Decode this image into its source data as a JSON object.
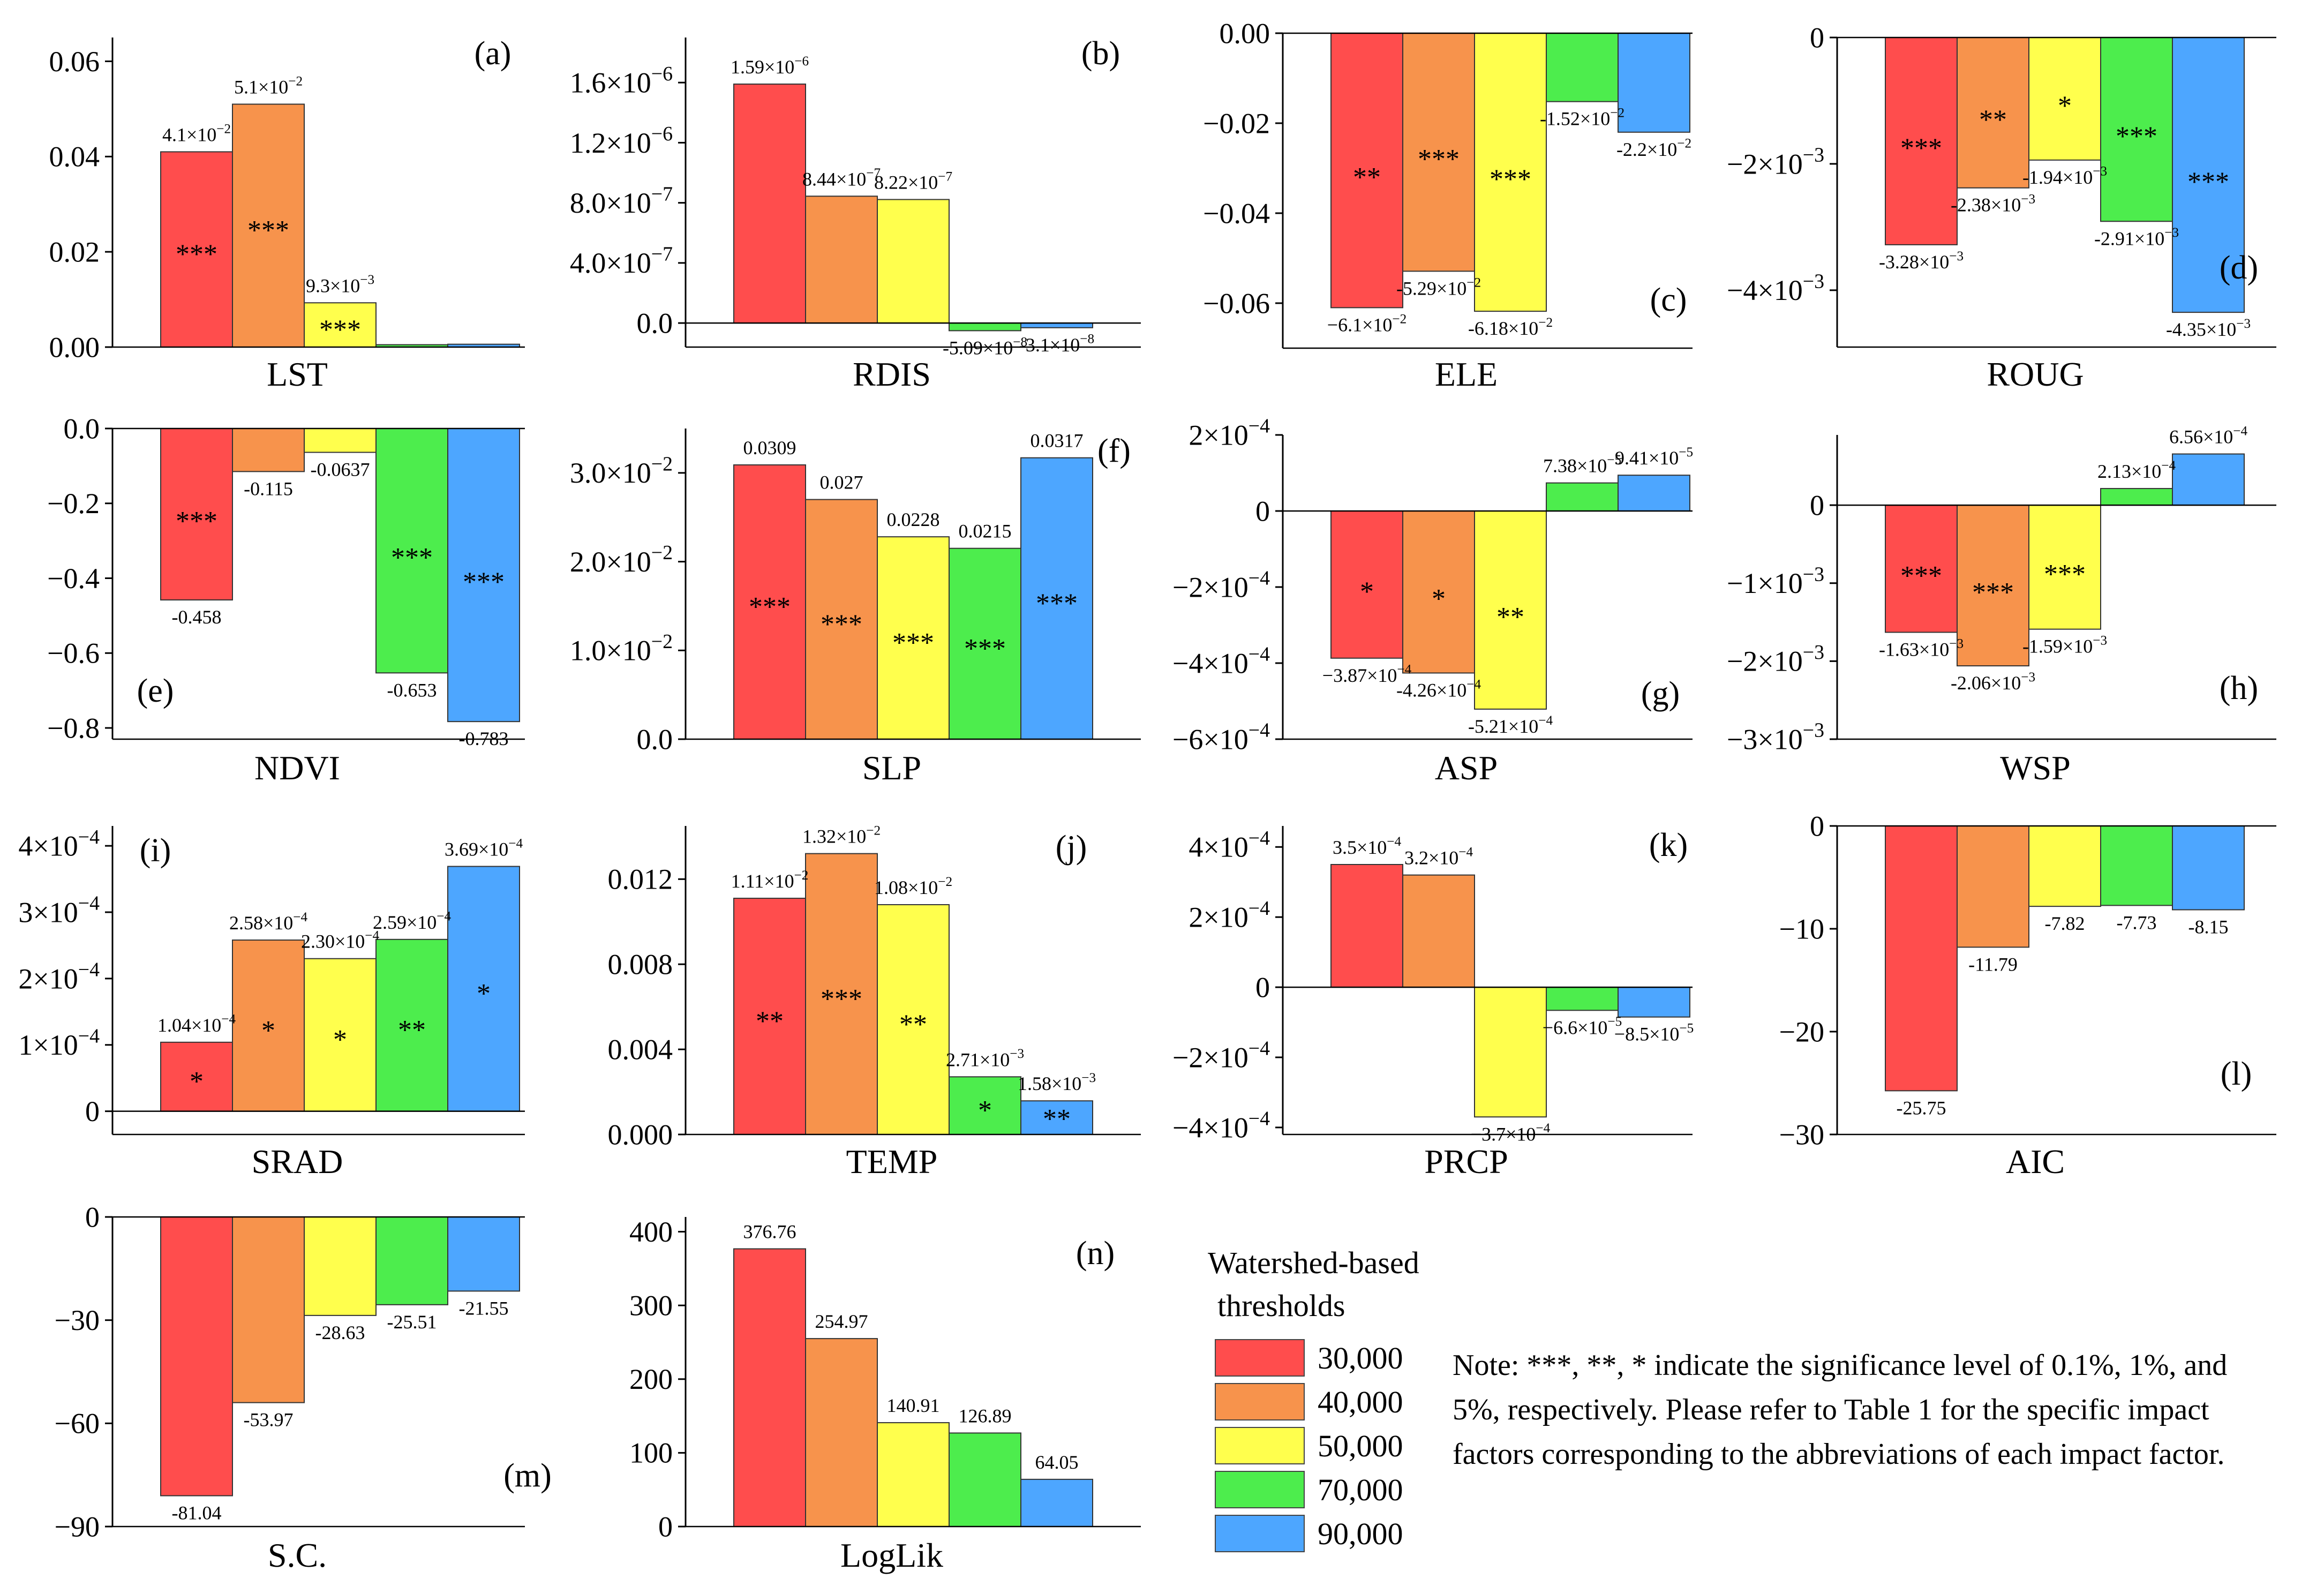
{
  "legend": {
    "title_line1": "Watershed-based",
    "title_line2": "thresholds",
    "entries": [
      {
        "label": "30,000",
        "color": "#ff4d4d"
      },
      {
        "label": "40,000",
        "color": "#f7934c"
      },
      {
        "label": "50,000",
        "color": "#ffff4d"
      },
      {
        "label": "70,000",
        "color": "#4ded4d"
      },
      {
        "label": "90,000",
        "color": "#4da6ff"
      }
    ]
  },
  "note": "Note: ***, **, * indicate the significance level of 0.1%, 1%, and 5%, respectively. Please refer to Table 1 for the specific impact factors corresponding to the abbreviations of each impact factor.",
  "chart_data": [
    {
      "type": "bar",
      "panel": "(a)",
      "xlabel": "LST",
      "ylim": [
        0,
        0.065
      ],
      "ticks": [
        0,
        0.02,
        0.04,
        0.06
      ],
      "tick_labels": [
        "0.00",
        "0.02",
        "0.04",
        "0.06"
      ],
      "categories": [
        "30,000",
        "40,000",
        "50,000",
        "70,000",
        "90,000"
      ],
      "values": [
        0.041,
        0.051,
        0.0093,
        0.0005,
        0.0006
      ],
      "value_labels": [
        "4.1×10^-2",
        "5.1×10^-2",
        "9.3×10^-3",
        "",
        ""
      ],
      "significance": [
        "***",
        "***",
        "***",
        "",
        ""
      ]
    },
    {
      "type": "bar",
      "panel": "(b)",
      "xlabel": "RDIS",
      "ylim": [
        -1.6e-07,
        1.9e-06
      ],
      "ticks": [
        0,
        4e-07,
        8e-07,
        1.2e-06,
        1.6e-06
      ],
      "tick_labels": [
        "0.0",
        "4.0×10^-7",
        "8.0×10^-7",
        "1.2×10^-6",
        "1.6×10^-6"
      ],
      "categories": [
        "30,000",
        "40,000",
        "50,000",
        "70,000",
        "90,000"
      ],
      "values": [
        1.59e-06,
        8.44e-07,
        8.22e-07,
        -5.09e-08,
        -3.1e-08
      ],
      "value_labels": [
        "1.59×10^-6",
        "8.44×10^-7",
        "8.22×10^-7",
        "-5.09×10^-8",
        "-3.1×10^-8"
      ],
      "significance": [
        "",
        "",
        "",
        "",
        ""
      ]
    },
    {
      "type": "bar",
      "panel": "(c)",
      "xlabel": "ELE",
      "ylim": [
        -0.07,
        0
      ],
      "ticks": [
        0,
        -0.02,
        -0.04,
        -0.06
      ],
      "tick_labels": [
        "0.00",
        "−0.02",
        "−0.04",
        "−0.06"
      ],
      "categories": [
        "30,000",
        "40,000",
        "50,000",
        "70,000",
        "90,000"
      ],
      "values": [
        -0.061,
        -0.0529,
        -0.0618,
        -0.0152,
        -0.022
      ],
      "value_labels": [
        "−6.1×10^-2",
        "-5.29×10^-2",
        "-6.18×10^-2",
        "-1.52×10^-2",
        "-2.2×10^-2"
      ],
      "significance": [
        "**",
        "***",
        "***",
        "",
        ""
      ]
    },
    {
      "type": "bar",
      "panel": "(d)",
      "xlabel": "ROUG",
      "ylim": [
        -0.0049,
        0
      ],
      "ticks": [
        0,
        -0.002,
        -0.004
      ],
      "tick_labels": [
        "0",
        "−2×10^-3",
        "−4×10^-3"
      ],
      "categories": [
        "30,000",
        "40,000",
        "50,000",
        "70,000",
        "90,000"
      ],
      "values": [
        -0.00328,
        -0.00238,
        -0.00194,
        -0.00291,
        -0.00435
      ],
      "value_labels": [
        "-3.28×10^-3",
        "-2.38×10^-3",
        "-1.94×10^-3",
        "-2.91×10^-3",
        "-4.35×10^-3"
      ],
      "significance": [
        "***",
        "**",
        "*",
        "***",
        "***"
      ]
    },
    {
      "type": "bar",
      "panel": "(e)",
      "xlabel": "NDVI",
      "ylim": [
        -0.83,
        0
      ],
      "ticks": [
        0,
        -0.2,
        -0.4,
        -0.6,
        -0.8
      ],
      "tick_labels": [
        "0.0",
        "−0.2",
        "−0.4",
        "−0.6",
        "−0.8"
      ],
      "categories": [
        "30,000",
        "40,000",
        "50,000",
        "70,000",
        "90,000"
      ],
      "values": [
        -0.458,
        -0.115,
        -0.0637,
        -0.653,
        -0.783
      ],
      "value_labels": [
        "-0.458",
        "-0.115",
        "-0.0637",
        "-0.653",
        "-0.783"
      ],
      "significance": [
        "***",
        "",
        "",
        "***",
        "***"
      ]
    },
    {
      "type": "bar",
      "panel": "(f)",
      "xlabel": "SLP",
      "ylim": [
        0,
        0.035
      ],
      "ticks": [
        0,
        0.01,
        0.02,
        0.03
      ],
      "tick_labels": [
        "0.0",
        "1.0×10^-2",
        "2.0×10^-2",
        "3.0×10^-2"
      ],
      "categories": [
        "30,000",
        "40,000",
        "50,000",
        "70,000",
        "90,000"
      ],
      "values": [
        0.0309,
        0.027,
        0.0228,
        0.0215,
        0.0317
      ],
      "value_labels": [
        "0.0309",
        "0.027",
        "0.0228",
        "0.0215",
        "0.0317"
      ],
      "significance": [
        "***",
        "***",
        "***",
        "***",
        "***"
      ]
    },
    {
      "type": "bar",
      "panel": "(g)",
      "xlabel": "ASP",
      "ylim": [
        -0.0006,
        0.0002
      ],
      "ticks": [
        0.0002,
        0,
        -0.0002,
        -0.0004,
        -0.0006
      ],
      "tick_labels": [
        "2×10^-4",
        "0",
        "−2×10^-4",
        "−4×10^-4",
        "−6×10^-4"
      ],
      "categories": [
        "30,000",
        "40,000",
        "50,000",
        "70,000",
        "90,000"
      ],
      "values": [
        -0.000387,
        -0.000426,
        -0.000521,
        7.38e-05,
        9.41e-05
      ],
      "value_labels": [
        "−3.87×10^-4",
        "-4.26×10^-4",
        "-5.21×10^-4",
        "7.38×10^-5",
        "9.41×10^-5"
      ],
      "significance": [
        "*",
        "*",
        "**",
        "",
        ""
      ]
    },
    {
      "type": "bar",
      "panel": "(h)",
      "xlabel": "WSP",
      "ylim": [
        -0.003,
        0.0009
      ],
      "ticks": [
        0,
        -0.001,
        -0.002,
        -0.003
      ],
      "tick_labels": [
        "0",
        "−1×10^-3",
        "−2×10^-3",
        "−3×10^-3"
      ],
      "categories": [
        "30,000",
        "40,000",
        "50,000",
        "70,000",
        "90,000"
      ],
      "values": [
        -0.00163,
        -0.00206,
        -0.00159,
        0.000213,
        0.000656
      ],
      "value_labels": [
        "-1.63×10^-3",
        "-2.06×10^-3",
        "-1.59×10^-3",
        "2.13×10^-4",
        "6.56×10^-4"
      ],
      "significance": [
        "***",
        "***",
        "***",
        "",
        ""
      ]
    },
    {
      "type": "bar",
      "panel": "(i)",
      "xlabel": "SRAD",
      "ylim": [
        -3.5e-05,
        0.00043
      ],
      "ticks": [
        0,
        0.0001,
        0.0002,
        0.0003,
        0.0004
      ],
      "tick_labels": [
        "0",
        "1×10^-4",
        "2×10^-4",
        "3×10^-4",
        "4×10^-4"
      ],
      "categories": [
        "30,000",
        "40,000",
        "50,000",
        "70,000",
        "90,000"
      ],
      "values": [
        0.000104,
        0.000258,
        0.00023,
        0.000259,
        0.000369
      ],
      "value_labels": [
        "1.04×10^-4",
        "2.58×10^-4",
        "2.30×10^-4",
        "2.59×10^-4",
        "3.69×10^-4"
      ],
      "significance": [
        "*",
        "*",
        "*",
        "**",
        "*"
      ]
    },
    {
      "type": "bar",
      "panel": "(j)",
      "xlabel": "TEMP",
      "ylim": [
        0,
        0.0145
      ],
      "ticks": [
        0,
        0.004,
        0.008,
        0.012
      ],
      "tick_labels": [
        "0.000",
        "0.004",
        "0.008",
        "0.012"
      ],
      "categories": [
        "30,000",
        "40,000",
        "50,000",
        "70,000",
        "90,000"
      ],
      "values": [
        0.0111,
        0.0132,
        0.0108,
        0.00271,
        0.00158
      ],
      "value_labels": [
        "1.11×10^-2",
        "1.32×10^-2",
        "1.08×10^-2",
        "2.71×10^-3",
        "1.58×10^-3"
      ],
      "significance": [
        "**",
        "***",
        "**",
        "*",
        "**"
      ]
    },
    {
      "type": "bar",
      "panel": "(k)",
      "xlabel": "PRCP",
      "ylim": [
        -0.00042,
        0.00046
      ],
      "ticks": [
        0.0004,
        0.0002,
        0,
        -0.0002,
        -0.0004
      ],
      "tick_labels": [
        "4×10^-4",
        "2×10^-4",
        "0",
        "−2×10^-4",
        "−4×10^-4"
      ],
      "categories": [
        "30,000",
        "40,000",
        "50,000",
        "70,000",
        "90,000"
      ],
      "values": [
        0.00035,
        0.00032,
        -0.00037,
        -6.6e-05,
        -8.5e-05
      ],
      "value_labels": [
        "3.5×10^-4",
        "3.2×10^-4",
        "−3.7×10^-4",
        "−6.6×10^-5",
        "−8.5×10^-5"
      ],
      "significance": [
        "",
        "",
        "",
        "",
        ""
      ]
    },
    {
      "type": "bar",
      "panel": "(l)",
      "xlabel": "AIC",
      "ylim": [
        -30,
        0
      ],
      "ticks": [
        0,
        -10,
        -20,
        -30
      ],
      "tick_labels": [
        "0",
        "−10",
        "−20",
        "−30"
      ],
      "categories": [
        "30,000",
        "40,000",
        "50,000",
        "70,000",
        "90,000"
      ],
      "values": [
        -25.75,
        -11.79,
        -7.82,
        -7.73,
        -8.15
      ],
      "value_labels": [
        "-25.75",
        "-11.79",
        "-7.82",
        "-7.73",
        "-8.15"
      ],
      "significance": [
        "",
        "",
        "",
        "",
        ""
      ]
    },
    {
      "type": "bar",
      "panel": "(m)",
      "xlabel": "S.C.",
      "ylim": [
        -90,
        0
      ],
      "ticks": [
        0,
        -30,
        -60,
        -90
      ],
      "tick_labels": [
        "0",
        "−30",
        "−60",
        "−90"
      ],
      "categories": [
        "30,000",
        "40,000",
        "50,000",
        "70,000",
        "90,000"
      ],
      "values": [
        -81.04,
        -53.97,
        -28.63,
        -25.51,
        -21.55
      ],
      "value_labels": [
        "-81.04",
        "-53.97",
        "-28.63",
        "-25.51",
        "-21.55"
      ],
      "significance": [
        "",
        "",
        "",
        "",
        ""
      ]
    },
    {
      "type": "bar",
      "panel": "(n)",
      "xlabel": "LogLik",
      "ylim": [
        0,
        420
      ],
      "ticks": [
        0,
        100,
        200,
        300,
        400
      ],
      "tick_labels": [
        "0",
        "100",
        "200",
        "300",
        "400"
      ],
      "categories": [
        "30,000",
        "40,000",
        "50,000",
        "70,000",
        "90,000"
      ],
      "values": [
        376.76,
        254.97,
        140.91,
        126.89,
        64.05
      ],
      "value_labels": [
        "376.76",
        "254.97",
        "140.91",
        "126.89",
        "64.05"
      ],
      "significance": [
        "",
        "",
        "",
        "",
        ""
      ]
    }
  ]
}
